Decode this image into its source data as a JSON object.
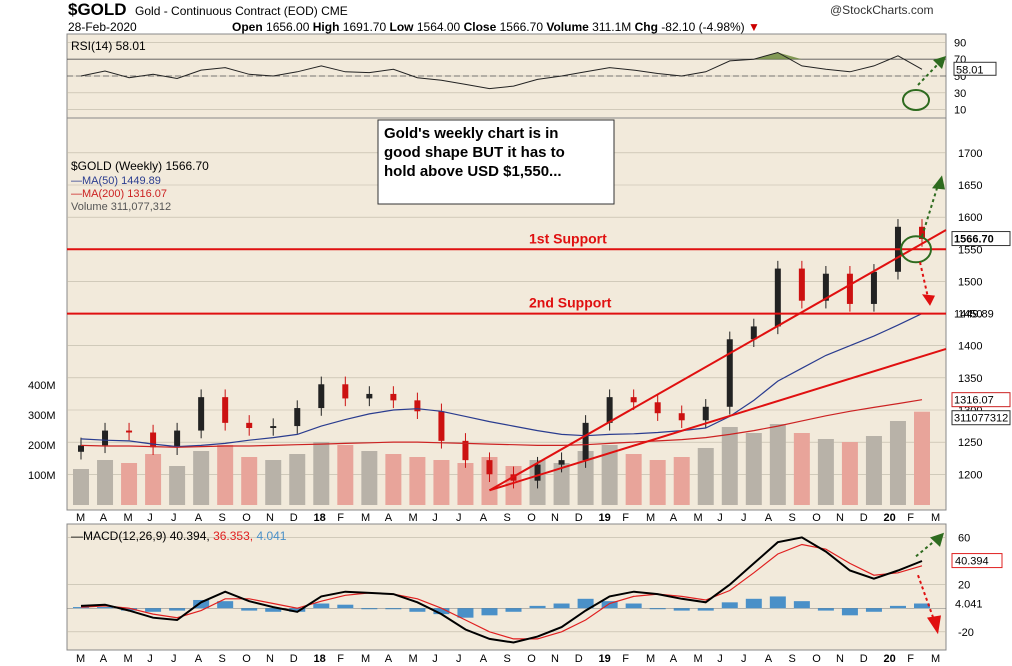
{
  "header": {
    "ticker": "$GOLD",
    "description": "Gold - Continuous Contract (EOD) CME",
    "date": "28-Feb-2020",
    "open_label": "Open",
    "open": "1656.00",
    "high_label": "High",
    "high": "1691.70",
    "low_label": "Low",
    "low": "1564.00",
    "close_label": "Close",
    "close": "1566.70",
    "volume_label": "Volume",
    "volume": "311.1M",
    "chg_label": "Chg",
    "chg": "-82.10 (-4.98%)",
    "brand": "@StockCharts.com"
  },
  "colors": {
    "panel_bg": "#f2eadb",
    "grid": "#bdb6a6",
    "up_candle": "#222222",
    "down_candle": "#cc1111",
    "ma50": "#2a3c8f",
    "ma200": "#cc2222",
    "volume_up": "#b8b2a8",
    "volume_down": "#e8a49a",
    "support": "#e01010",
    "rsi_fill": "#6e8b3d",
    "macd_line": "#000000",
    "signal_line": "#e02020",
    "hist": "#4a90c8",
    "annotation_green": "#2e6b1f"
  },
  "annotations": {
    "note": "Gold's weekly chart is in good shape BUT it has to hold above USD $1,550...",
    "support1": "1st Support",
    "support2": "2nd Support"
  },
  "chart_data": [
    {
      "type": "line",
      "name_label": "RSI(14) 58.01",
      "ticks": [
        "90",
        "70",
        "50",
        "30",
        "10"
      ],
      "last_value_label": "58.01",
      "ylim": [
        0,
        100
      ],
      "reference_lines": [
        70,
        50
      ],
      "x": [
        "2017-03",
        "2017-04",
        "2017-05",
        "2017-06",
        "2017-07",
        "2017-08",
        "2017-09",
        "2017-10",
        "2017-11",
        "2017-12",
        "2018-01",
        "2018-02",
        "2018-03",
        "2018-04",
        "2018-05",
        "2018-06",
        "2018-07",
        "2018-08",
        "2018-09",
        "2018-10",
        "2018-11",
        "2018-12",
        "2019-01",
        "2019-02",
        "2019-03",
        "2019-04",
        "2019-05",
        "2019-06",
        "2019-07",
        "2019-08",
        "2019-09",
        "2019-10",
        "2019-11",
        "2019-12",
        "2020-01",
        "2020-02"
      ],
      "values": [
        50,
        56,
        48,
        52,
        47,
        57,
        60,
        52,
        50,
        55,
        62,
        55,
        54,
        58,
        48,
        45,
        40,
        35,
        38,
        46,
        50,
        55,
        60,
        57,
        53,
        50,
        55,
        68,
        70,
        78,
        62,
        58,
        55,
        62,
        74,
        58
      ]
    },
    {
      "type": "candlestick",
      "title": "$GOLD (Weekly) 1566.70",
      "legend": [
        "MA(50) 1449.89",
        "MA(200) 1316.07",
        "Volume 311,077,312"
      ],
      "price_ticks": [
        "1700",
        "1650",
        "1600",
        "1550",
        "1500",
        "1450",
        "1400",
        "1350",
        "1300",
        "1250",
        "1200"
      ],
      "volume_ticks": [
        "400M",
        "300M",
        "200M",
        "100M"
      ],
      "last_price_label": "1566.70",
      "ma50_label": "1449.89",
      "ma200_label": "1316.07",
      "volume_label": "311077312",
      "ylim": [
        1160,
        1720
      ],
      "support_levels": [
        1550,
        1450
      ],
      "x_month_labels": [
        "M",
        "A",
        "M",
        "J",
        "J",
        "A",
        "S",
        "O",
        "N",
        "D",
        "18",
        "F",
        "M",
        "A",
        "M",
        "J",
        "J",
        "A",
        "S",
        "O",
        "N",
        "D",
        "19",
        "F",
        "M",
        "A",
        "M",
        "J",
        "J",
        "A",
        "S",
        "O",
        "N",
        "D",
        "20",
        "F",
        "M"
      ],
      "x": [
        "2017-03",
        "2017-04",
        "2017-05",
        "2017-06",
        "2017-07",
        "2017-08",
        "2017-09",
        "2017-10",
        "2017-11",
        "2017-12",
        "2018-01",
        "2018-02",
        "2018-03",
        "2018-04",
        "2018-05",
        "2018-06",
        "2018-07",
        "2018-08",
        "2018-09",
        "2018-10",
        "2018-11",
        "2018-12",
        "2019-01",
        "2019-02",
        "2019-03",
        "2019-04",
        "2019-05",
        "2019-06",
        "2019-07",
        "2019-08",
        "2019-09",
        "2019-10",
        "2019-11",
        "2019-12",
        "2020-01",
        "2020-02"
      ],
      "close": [
        1245,
        1268,
        1265,
        1242,
        1268,
        1320,
        1280,
        1272,
        1275,
        1303,
        1340,
        1318,
        1325,
        1315,
        1298,
        1252,
        1222,
        1200,
        1190,
        1215,
        1222,
        1280,
        1320,
        1312,
        1295,
        1284,
        1305,
        1410,
        1430,
        1520,
        1470,
        1512,
        1465,
        1515,
        1585,
        1566
      ],
      "ma50": [
        1255,
        1253,
        1252,
        1247,
        1243,
        1245,
        1248,
        1253,
        1257,
        1262,
        1275,
        1285,
        1294,
        1300,
        1302,
        1298,
        1290,
        1282,
        1275,
        1268,
        1262,
        1260,
        1262,
        1263,
        1265,
        1268,
        1272,
        1290,
        1315,
        1345,
        1365,
        1385,
        1400,
        1415,
        1432,
        1450
      ],
      "ma200": [
        1245,
        1244,
        1244,
        1243,
        1242,
        1243,
        1244,
        1244,
        1245,
        1246,
        1247,
        1248,
        1249,
        1250,
        1250,
        1249,
        1248,
        1247,
        1246,
        1245,
        1245,
        1246,
        1248,
        1250,
        1252,
        1254,
        1257,
        1262,
        1268,
        1275,
        1283,
        1291,
        1298,
        1304,
        1310,
        1316
      ],
      "volume_m": [
        120,
        150,
        140,
        170,
        130,
        180,
        200,
        160,
        150,
        170,
        210,
        200,
        180,
        170,
        160,
        150,
        140,
        160,
        130,
        150,
        140,
        180,
        200,
        170,
        150,
        160,
        190,
        260,
        240,
        270,
        240,
        220,
        210,
        230,
        280,
        311
      ]
    },
    {
      "type": "line",
      "name_label": "MACD(12,26,9)",
      "macd_value": "40.394",
      "signal_value": "36.353",
      "hist_value": "4.041",
      "ticks": [
        "60",
        "20",
        "-20"
      ],
      "ylim": [
        -32,
        68
      ],
      "x": [
        "2017-03",
        "2017-04",
        "2017-05",
        "2017-06",
        "2017-07",
        "2017-08",
        "2017-09",
        "2017-10",
        "2017-11",
        "2017-12",
        "2018-01",
        "2018-02",
        "2018-03",
        "2018-04",
        "2018-05",
        "2018-06",
        "2018-07",
        "2018-08",
        "2018-09",
        "2018-10",
        "2018-11",
        "2018-12",
        "2019-01",
        "2019-02",
        "2019-03",
        "2019-04",
        "2019-05",
        "2019-06",
        "2019-07",
        "2019-08",
        "2019-09",
        "2019-10",
        "2019-11",
        "2019-12",
        "2020-01",
        "2020-02"
      ],
      "macd": [
        2,
        3,
        -2,
        -8,
        -10,
        5,
        14,
        6,
        1,
        -3,
        10,
        14,
        13,
        12,
        5,
        -5,
        -18,
        -26,
        -29,
        -24,
        -16,
        -2,
        10,
        14,
        12,
        8,
        5,
        20,
        38,
        56,
        60,
        48,
        32,
        25,
        32,
        40
      ],
      "signal": [
        1,
        2,
        0,
        -5,
        -8,
        -2,
        8,
        8,
        4,
        0,
        6,
        11,
        13,
        12,
        8,
        0,
        -10,
        -20,
        -26,
        -26,
        -20,
        -10,
        4,
        10,
        12,
        10,
        7,
        15,
        30,
        46,
        54,
        50,
        38,
        28,
        30,
        36
      ],
      "histogram": [
        1,
        1,
        -2,
        -3,
        -2,
        7,
        6,
        -2,
        -3,
        -3,
        4,
        3,
        0,
        0,
        -3,
        -5,
        -8,
        -6,
        -3,
        2,
        4,
        8,
        6,
        4,
        0,
        -2,
        -2,
        5,
        8,
        10,
        6,
        -2,
        -6,
        -3,
        2,
        4
      ]
    }
  ]
}
